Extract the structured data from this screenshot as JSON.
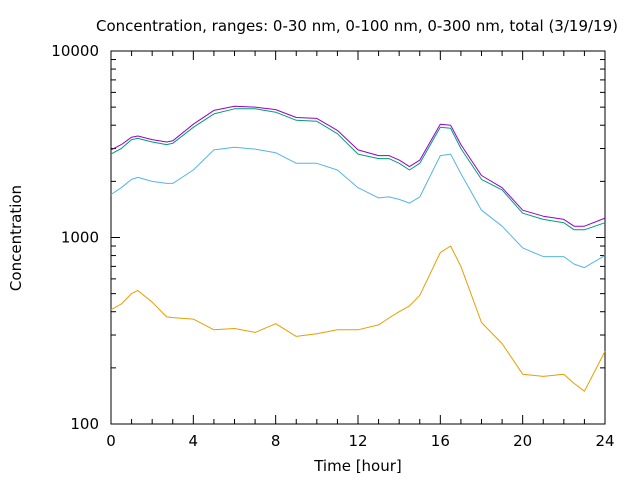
{
  "chart_data": {
    "type": "line",
    "title": "Concentration, ranges: 0-30 nm, 0-100 nm, 0-300 nm, total (3/19/19)",
    "xlabel": "Time [hour]",
    "ylabel": "Concentration",
    "xlim": [
      0,
      24
    ],
    "ylim": [
      100,
      10000
    ],
    "yscale": "log",
    "grid": false,
    "legend": "none",
    "x_ticks": [
      0,
      4,
      8,
      12,
      16,
      20,
      24
    ],
    "x_tick_labels": [
      "0",
      "4",
      "8",
      "12",
      "16",
      "20",
      "24"
    ],
    "y_ticks": [
      100,
      1000,
      10000
    ],
    "y_tick_labels": [
      "100",
      "1000",
      "10000"
    ],
    "x": [
      0,
      0.5,
      1,
      1.3,
      2,
      2.7,
      3,
      4,
      5,
      6,
      7,
      8,
      9,
      10,
      11,
      12,
      13,
      13.5,
      14,
      14.5,
      15,
      16,
      16.5,
      17,
      18,
      19,
      20,
      21,
      22,
      22.5,
      23,
      24
    ],
    "series": [
      {
        "color": "#e69f00",
        "values": [
          410,
          440,
          500,
          520,
          450,
          375,
          372,
          365,
          320,
          325,
          310,
          345,
          295,
          305,
          320,
          320,
          340,
          370,
          400,
          430,
          490,
          830,
          900,
          700,
          350,
          270,
          185,
          180,
          185,
          165,
          150,
          245
        ]
      },
      {
        "color": "#56b4e9",
        "values": [
          1700,
          1850,
          2050,
          2100,
          2000,
          1950,
          1950,
          2300,
          2950,
          3050,
          2980,
          2850,
          2500,
          2500,
          2300,
          1850,
          1630,
          1650,
          1600,
          1530,
          1650,
          2750,
          2800,
          2200,
          1400,
          1150,
          880,
          790,
          790,
          720,
          690,
          800
        ]
      },
      {
        "color": "#009e73",
        "values": [
          2800,
          3000,
          3350,
          3400,
          3250,
          3150,
          3200,
          3900,
          4600,
          4900,
          4900,
          4700,
          4250,
          4200,
          3600,
          2800,
          2650,
          2650,
          2500,
          2300,
          2500,
          3900,
          3850,
          3000,
          2050,
          1800,
          1350,
          1250,
          1200,
          1100,
          1100,
          1200
        ]
      },
      {
        "color": "#9400d3",
        "values": [
          2950,
          3150,
          3450,
          3500,
          3350,
          3250,
          3300,
          4050,
          4800,
          5050,
          5000,
          4850,
          4400,
          4350,
          3750,
          2950,
          2750,
          2750,
          2600,
          2400,
          2600,
          4050,
          4000,
          3150,
          2150,
          1850,
          1400,
          1300,
          1250,
          1150,
          1150,
          1270
        ]
      }
    ]
  }
}
